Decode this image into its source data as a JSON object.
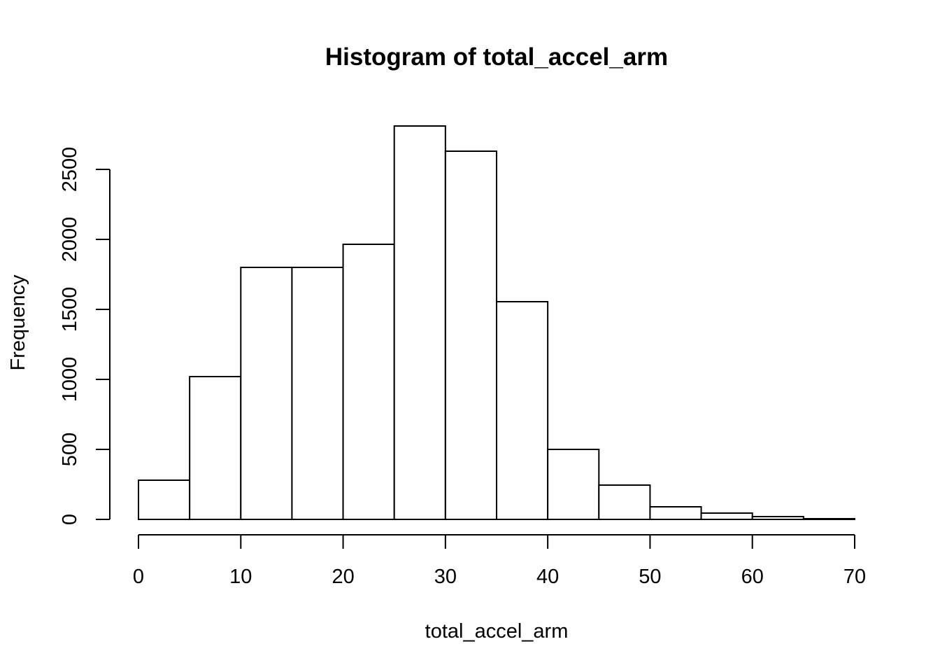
{
  "chart_data": {
    "type": "bar",
    "title": "Histogram of total_accel_arm",
    "xlabel": "total_accel_arm",
    "ylabel": "Frequency",
    "bin_edges": [
      0,
      5,
      10,
      15,
      20,
      25,
      30,
      35,
      40,
      45,
      50,
      55,
      60,
      65,
      70
    ],
    "values": [
      280,
      1020,
      1800,
      1800,
      1965,
      2810,
      2630,
      1555,
      500,
      245,
      90,
      45,
      20,
      5
    ],
    "xlim": [
      0,
      70
    ],
    "ylim": [
      0,
      2810
    ],
    "x_ticks": [
      0,
      10,
      20,
      30,
      40,
      50,
      60,
      70
    ],
    "y_ticks": [
      0,
      500,
      1000,
      1500,
      2000,
      2500
    ],
    "grid": false,
    "bar_fill": "#ffffff",
    "bar_stroke": "#000000"
  }
}
